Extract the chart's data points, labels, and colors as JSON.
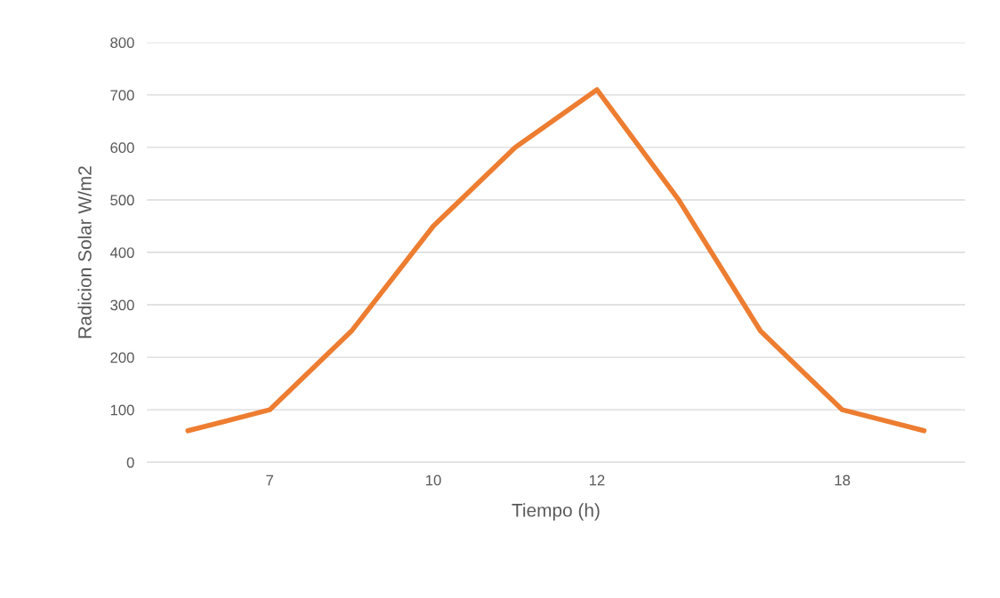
{
  "chart_data": {
    "type": "line",
    "xlabel": "Tiempo (h)",
    "ylabel": "Radicion Solar W/m2",
    "categories": [
      null,
      "7",
      null,
      "10",
      null,
      "12",
      null,
      null,
      "18",
      null
    ],
    "series": [
      {
        "color": "#ed7d31",
        "values": [
          60,
          100,
          250,
          450,
          600,
          710,
          500,
          250,
          100,
          60
        ]
      }
    ],
    "ylim": [
      0,
      800
    ],
    "yticks": [
      0,
      100,
      200,
      300,
      400,
      500,
      600,
      700,
      800
    ],
    "grid": "y",
    "marker": "none",
    "line_style": "solid"
  }
}
